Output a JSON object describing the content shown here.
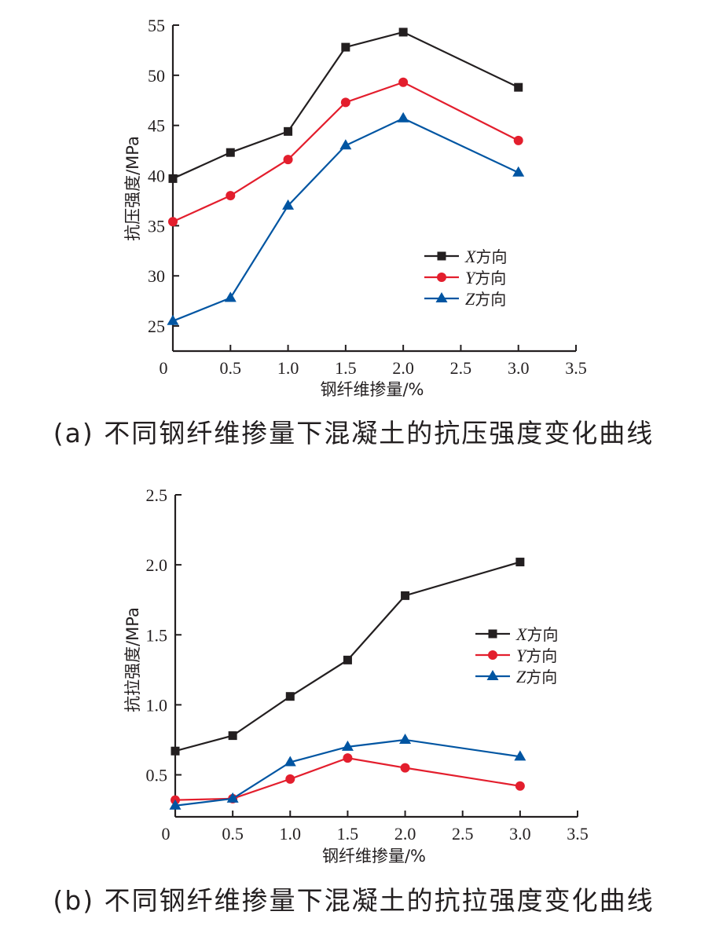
{
  "chart_data": [
    {
      "type": "line",
      "title": "",
      "caption": "(a) 不同钢纤维掺量下混凝土的抗压强度变化曲线",
      "xlabel": "钢纤维掺量/%",
      "ylabel": "抗压强度/MPa",
      "xlim": [
        0,
        3.5
      ],
      "ylim": [
        22.5,
        55
      ],
      "xticks": [
        0,
        0.5,
        1.0,
        1.5,
        2.0,
        2.5,
        3.0,
        3.5
      ],
      "xtick_labels": [
        "0",
        "0.5",
        "1.0",
        "1.5",
        "2.0",
        "2.5",
        "3.0",
        "3.5"
      ],
      "yticks": [
        25,
        30,
        35,
        40,
        45,
        50,
        55
      ],
      "ytick_labels": [
        "25",
        "30",
        "35",
        "40",
        "45",
        "50",
        "55"
      ],
      "grid": false,
      "legend_position": "center-right",
      "x": [
        0,
        0.5,
        1.0,
        1.5,
        2.0,
        3.0
      ],
      "series": [
        {
          "name": "X方向",
          "italic_prefix": "X",
          "suffix": "方向",
          "marker": "square",
          "color": "#231f20",
          "values": [
            39.7,
            42.3,
            44.4,
            52.8,
            54.3,
            48.8
          ]
        },
        {
          "name": "Y方向",
          "italic_prefix": "Y",
          "suffix": "方向",
          "marker": "circle",
          "color": "#e31e2d",
          "values": [
            35.4,
            38.0,
            41.6,
            47.3,
            49.3,
            43.5
          ]
        },
        {
          "name": "Z方向",
          "italic_prefix": "Z",
          "suffix": "方向",
          "marker": "triangle",
          "color": "#0055a2",
          "values": [
            25.5,
            27.8,
            37.0,
            43.0,
            45.7,
            40.3
          ]
        }
      ]
    },
    {
      "type": "line",
      "title": "",
      "caption": "(b) 不同钢纤维掺量下混凝土的抗拉强度变化曲线",
      "xlabel": "钢纤维掺量/%",
      "ylabel": "抗拉强度/MPa",
      "xlim": [
        0,
        3.5
      ],
      "ylim": [
        0.2,
        2.5
      ],
      "xticks": [
        0,
        0.5,
        1.0,
        1.5,
        2.0,
        2.5,
        3.0,
        3.5
      ],
      "xtick_labels": [
        "0",
        "0.5",
        "1.0",
        "1.5",
        "2.0",
        "2.5",
        "3.0",
        "3.5"
      ],
      "yticks": [
        0.5,
        1.0,
        1.5,
        2.0,
        2.5
      ],
      "ytick_labels": [
        "0.5",
        "1.0",
        "1.5",
        "2.0",
        "2.5"
      ],
      "grid": false,
      "legend_position": "center-right",
      "x": [
        0,
        0.5,
        1.0,
        1.5,
        2.0,
        3.0
      ],
      "series": [
        {
          "name": "X方向",
          "italic_prefix": "X",
          "suffix": "方向",
          "marker": "square",
          "color": "#231f20",
          "values": [
            0.67,
            0.78,
            1.06,
            1.32,
            1.78,
            2.02
          ]
        },
        {
          "name": "Y方向",
          "italic_prefix": "Y",
          "suffix": "方向",
          "marker": "circle",
          "color": "#e31e2d",
          "values": [
            0.32,
            0.33,
            0.47,
            0.62,
            0.55,
            0.42
          ]
        },
        {
          "name": "Z方向",
          "italic_prefix": "Z",
          "suffix": "方向",
          "marker": "triangle",
          "color": "#0055a2",
          "values": [
            0.28,
            0.33,
            0.59,
            0.7,
            0.75,
            0.63
          ]
        }
      ]
    }
  ]
}
